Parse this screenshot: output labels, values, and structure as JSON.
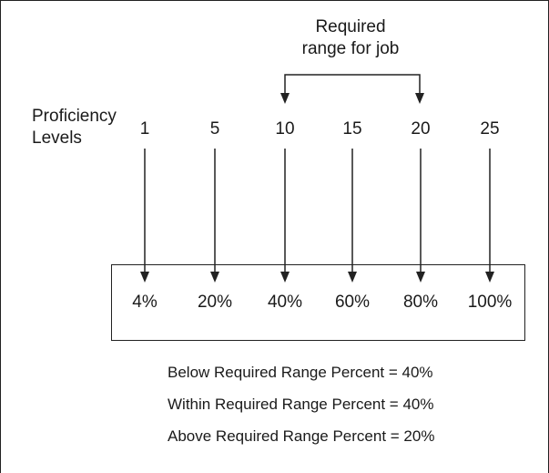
{
  "required_range": {
    "line1": "Required",
    "line2": "range for job"
  },
  "proficiency": {
    "label_line1": "Proficiency",
    "label_line2": "Levels",
    "levels": [
      "1",
      "5",
      "10",
      "15",
      "20",
      "25"
    ]
  },
  "percentages": [
    "4%",
    "20%",
    "40%",
    "60%",
    "80%",
    "100%"
  ],
  "summary": {
    "below": "Below Required Range Percent = 40%",
    "within": "Within Required Range Percent = 40%",
    "above": "Above Required Range Percent = 20%"
  }
}
